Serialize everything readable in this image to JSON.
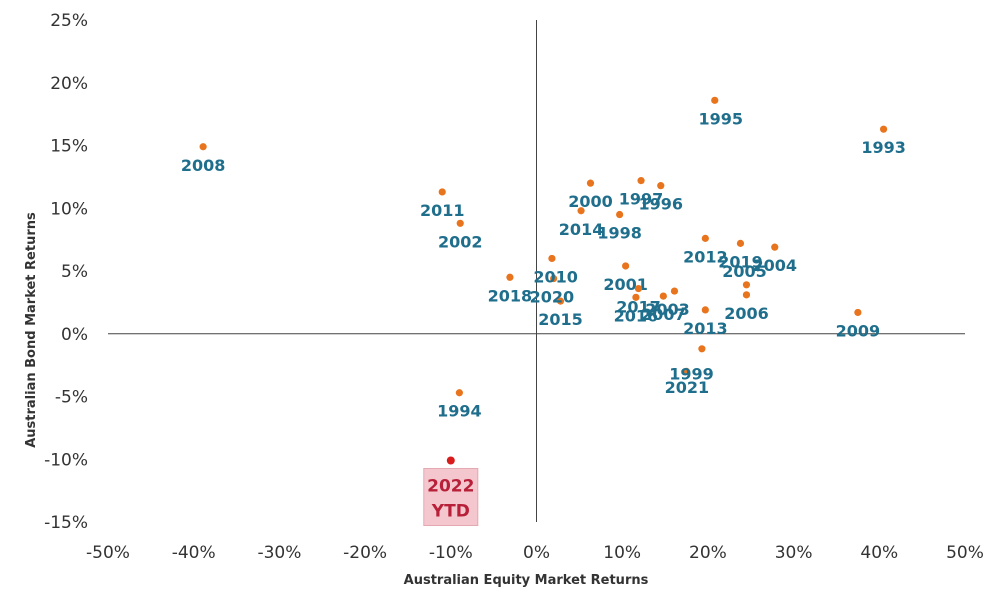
{
  "chart_data": {
    "type": "scatter",
    "xlabel": "Australian Equity Market Returns",
    "ylabel": "Australian Bond Market Returns",
    "xlim": [
      -50,
      50
    ],
    "ylim": [
      -15,
      25
    ],
    "x_ticks": [
      "-50%",
      "-40%",
      "-30%",
      "-20%",
      "-10%",
      "0%",
      "10%",
      "20%",
      "30%",
      "40%",
      "50%"
    ],
    "y_ticks": [
      "25%",
      "20%",
      "15%",
      "10%",
      "5%",
      "0%",
      "-5%",
      "-10%",
      "-15%"
    ],
    "point_color": "#e8741e",
    "label_color": "#1f6e8c",
    "highlight_color": "#d81b1b",
    "highlight_label_color": "#b8203a",
    "highlight_box_color": "#f4c7ce",
    "points": [
      {
        "label": "1993",
        "x": 40.5,
        "y": 16.3,
        "dx": 0,
        "dy": 24
      },
      {
        "label": "1994",
        "x": -9,
        "y": -4.7,
        "dx": 0,
        "dy": 24
      },
      {
        "label": "1995",
        "x": 20.8,
        "y": 18.6,
        "dx": 6,
        "dy": 24
      },
      {
        "label": "1996",
        "x": 14.5,
        "y": 11.8,
        "dx": 0,
        "dy": 24
      },
      {
        "label": "1997",
        "x": 12.2,
        "y": 12.2,
        "dx": 0,
        "dy": 24
      },
      {
        "label": "1998",
        "x": 9.7,
        "y": 9.5,
        "dx": 0,
        "dy": 24
      },
      {
        "label": "1999",
        "x": 17.5,
        "y": -3,
        "dx": 5,
        "dy": 8
      },
      {
        "label": "2000",
        "x": 6.3,
        "y": 12,
        "dx": 0,
        "dy": 24
      },
      {
        "label": "2001",
        "x": 10.4,
        "y": 5.4,
        "dx": 0,
        "dy": 24
      },
      {
        "label": "2002",
        "x": -8.9,
        "y": 8.8,
        "dx": 0,
        "dy": 24
      },
      {
        "label": "2003",
        "x": 16.1,
        "y": 3.4,
        "dx": -7,
        "dy": 24
      },
      {
        "label": "2004",
        "x": 27.8,
        "y": 6.9,
        "dx": 0,
        "dy": 24
      },
      {
        "label": "2005",
        "x": 24.5,
        "y": 3.9,
        "dx": -2,
        "dy": -8
      },
      {
        "label": "2006",
        "x": 24.5,
        "y": 3.1,
        "dx": 0,
        "dy": 24
      },
      {
        "label": "2007",
        "x": 14.8,
        "y": 3,
        "dx": 0,
        "dy": 24
      },
      {
        "label": "2008",
        "x": -38.9,
        "y": 14.9,
        "dx": 0,
        "dy": 24
      },
      {
        "label": "2009",
        "x": 37.5,
        "y": 1.7,
        "dx": 0,
        "dy": 24
      },
      {
        "label": "2010",
        "x": 2,
        "y": 4.4,
        "dx": 2,
        "dy": 4
      },
      {
        "label": "2011",
        "x": -11,
        "y": 11.3,
        "dx": 0,
        "dy": 24
      },
      {
        "label": "2012",
        "x": 19.7,
        "y": 7.6,
        "dx": 0,
        "dy": 24
      },
      {
        "label": "2013",
        "x": 19.7,
        "y": 1.9,
        "dx": 0,
        "dy": 24
      },
      {
        "label": "2014",
        "x": 5.2,
        "y": 9.8,
        "dx": 0,
        "dy": 24
      },
      {
        "label": "2015",
        "x": 2.8,
        "y": 2.6,
        "dx": 0,
        "dy": 24
      },
      {
        "label": "2016",
        "x": 11.6,
        "y": 2.9,
        "dx": 0,
        "dy": 24
      },
      {
        "label": "2017",
        "x": 11.9,
        "y": 3.6,
        "dx": 0,
        "dy": 24
      },
      {
        "label": "2018",
        "x": -3.1,
        "y": 4.5,
        "dx": 0,
        "dy": 24
      },
      {
        "label": "2019",
        "x": 23.8,
        "y": 7.2,
        "dx": 0,
        "dy": 24
      },
      {
        "label": "2020",
        "x": 1.8,
        "y": 6,
        "dx": 0,
        "dy": 44
      },
      {
        "label": "2021",
        "x": 19.3,
        "y": -1.2,
        "dx": -15,
        "dy": 44
      }
    ],
    "highlight": {
      "label_line1": "2022",
      "label_line2": "YTD",
      "x": -10,
      "y": -10.1
    }
  }
}
